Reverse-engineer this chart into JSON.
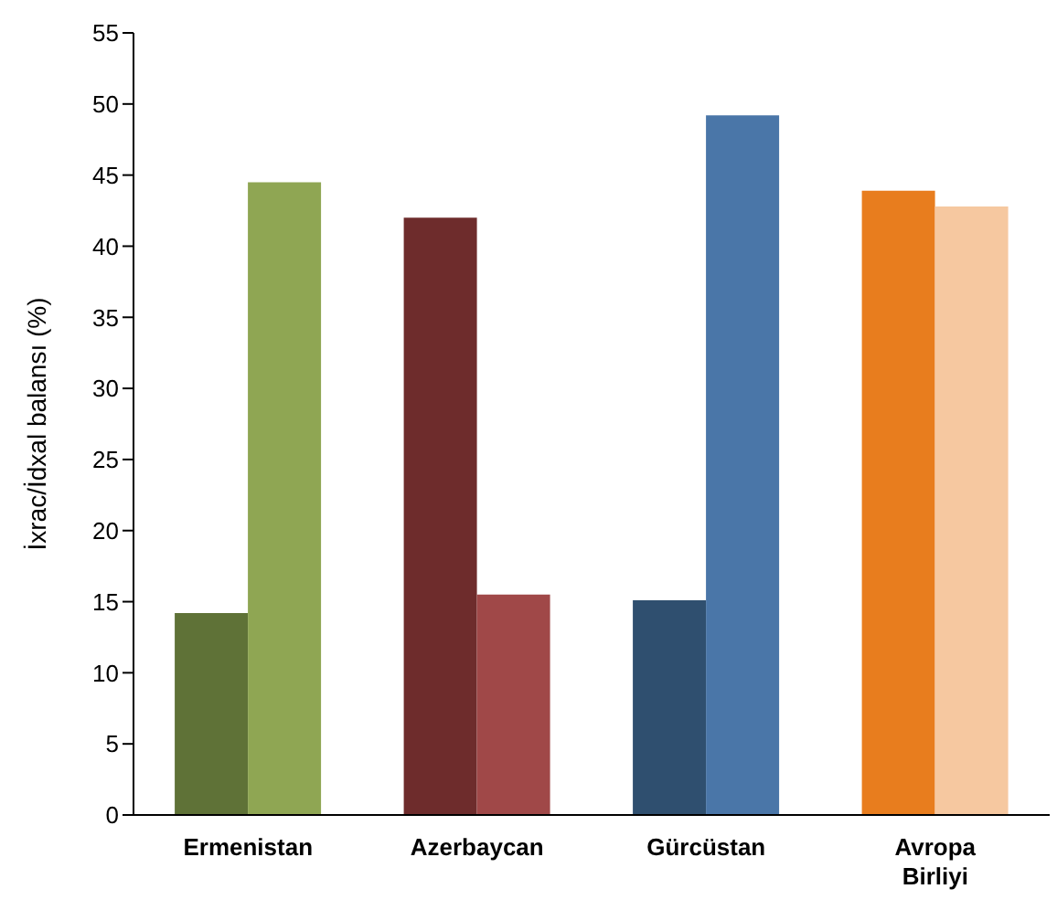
{
  "chart_data": {
    "type": "bar",
    "ylabel": "İxrac/İdxal balansı (%)",
    "categories": [
      "Ermenistan",
      "Azerbaycan",
      "Gürcüstan",
      "Avropa Birliyi"
    ],
    "series": [
      {
        "colors": [
          "#5f7237",
          "#6e2c2c",
          "#2f4f6f",
          "#e87d1e"
        ],
        "values": [
          14.2,
          42.0,
          15.1,
          43.9
        ]
      },
      {
        "colors": [
          "#8fa653",
          "#a04848",
          "#4a76a8",
          "#f6c8a0"
        ],
        "values": [
          44.5,
          15.5,
          49.2,
          42.8
        ]
      }
    ],
    "ylim": [
      0,
      55
    ],
    "yticks": [
      0,
      5,
      10,
      15,
      20,
      25,
      30,
      35,
      40,
      45,
      50,
      55
    ],
    "grid": false,
    "legend": false
  }
}
